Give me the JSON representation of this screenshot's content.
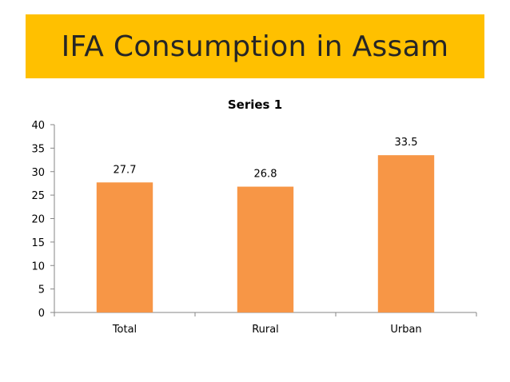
{
  "slide": {
    "title": "IFA Consumption in Assam",
    "banner_color": "#FFC000"
  },
  "chart_data": {
    "type": "bar",
    "title": "Series 1",
    "categories": [
      "Total",
      "Rural",
      "Urban"
    ],
    "series": [
      {
        "values": [
          27.7,
          26.8,
          33.5
        ],
        "color": "#F79646"
      }
    ],
    "data_labels": [
      "27.7",
      "26.8",
      "33.5"
    ],
    "ylim": [
      0,
      40
    ],
    "yticks": [
      0,
      5,
      10,
      15,
      20,
      25,
      30,
      35,
      40
    ],
    "grid": false,
    "legend": "none",
    "xlabel": "",
    "ylabel": ""
  }
}
